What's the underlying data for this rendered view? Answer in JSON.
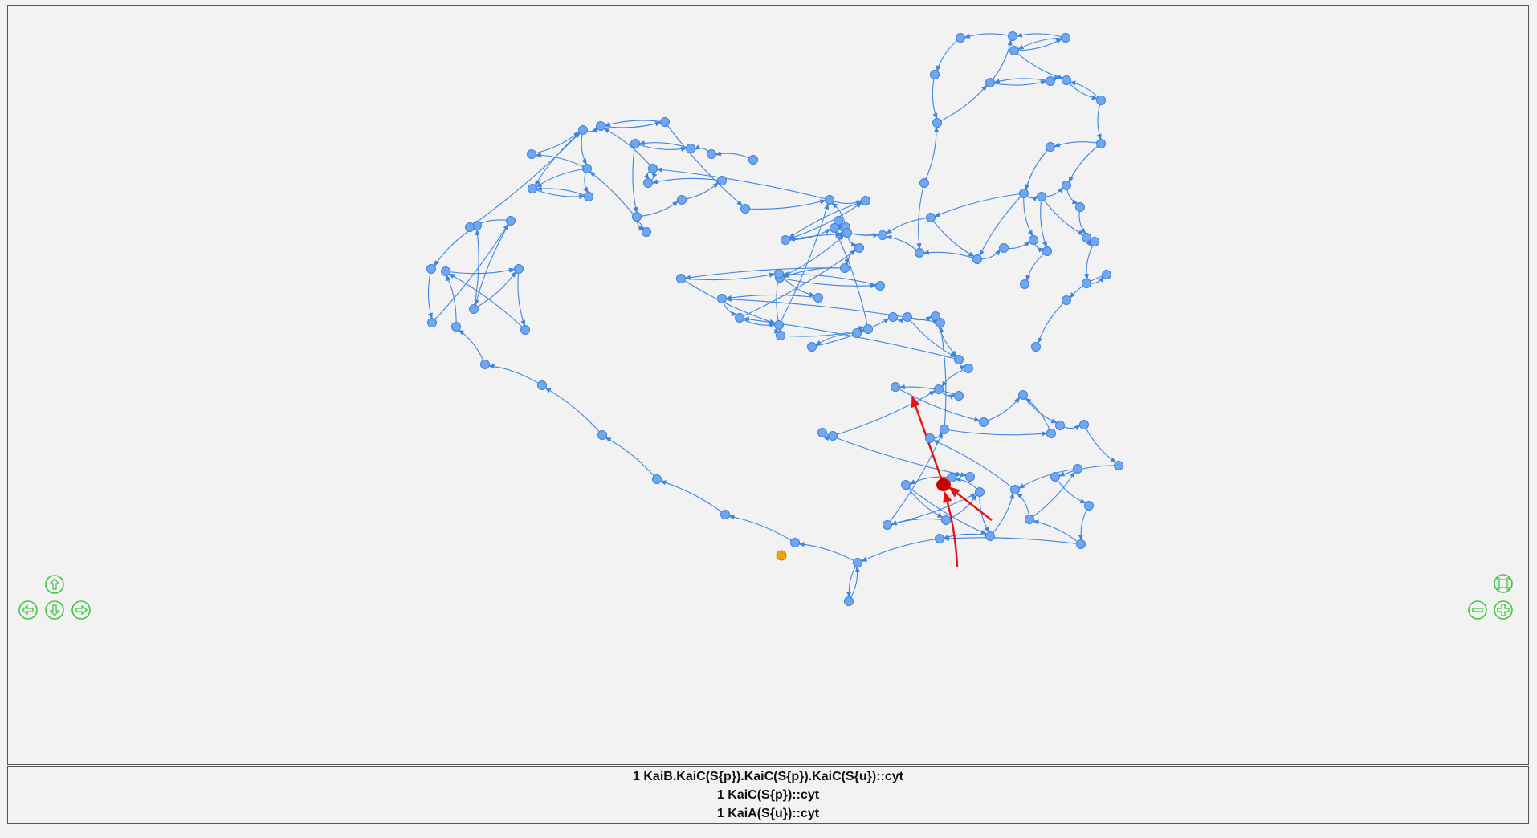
{
  "colors": {
    "node": "#6fa8f0",
    "node_stroke": "#3f7fd6",
    "edge": "#3f85e0",
    "highlight": "#e81010",
    "highlight_node": "#c80000",
    "source_node": "#f5a000",
    "nav": "#3fc83f"
  },
  "navigation": {
    "up": "arrow-up-icon",
    "left": "arrow-left-icon",
    "down": "arrow-down-icon",
    "right": "arrow-right-icon",
    "fit": "fit-screen-icon",
    "zoom_out": "zoom-out-icon",
    "zoom_in": "zoom-in-icon"
  },
  "selection_info": {
    "lines": [
      "1 KaiB.KaiC(S{p}).KaiC(S{p}).KaiC(S{u})::cyt",
      "1 KaiC(S{p})::cyt",
      "1 KaiA(S{u})::cyt"
    ]
  }
}
